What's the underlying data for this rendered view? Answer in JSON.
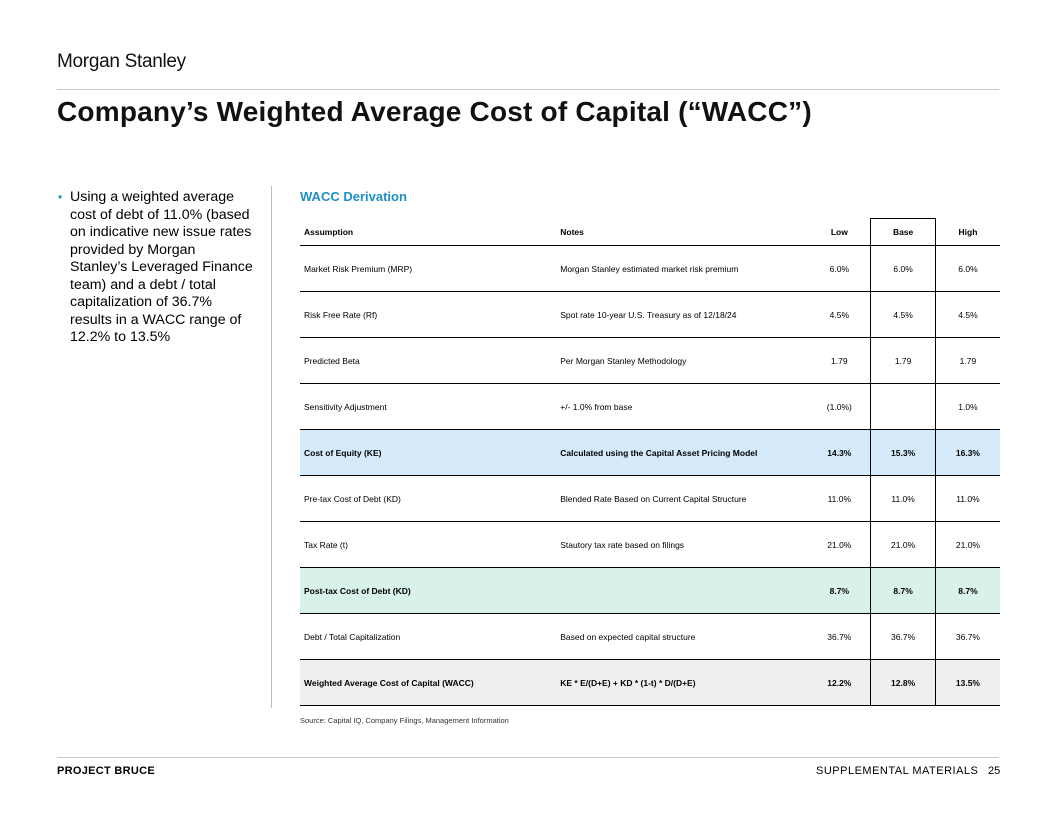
{
  "header": {
    "logo": "Morgan Stanley",
    "title": "Company’s Weighted Average Cost of Capital (“WACC”)"
  },
  "bullet": {
    "text": "Using a weighted average cost of debt of 11.0% (based on indicative new issue rates provided by Morgan Stanley’s Leveraged Finance team) and a debt / total capitalization of 36.7% results in a WACC range of 12.2% to 13.5%"
  },
  "table": {
    "section_title": "WACC Derivation",
    "headers": [
      "Assumption",
      "Notes",
      "Low",
      "Base",
      "High"
    ],
    "rows": [
      [
        "Market Risk Premium (MRP)",
        "Morgan Stanley estimated market risk premium",
        "6.0%",
        "6.0%",
        "6.0%"
      ],
      [
        "Risk Free Rate (Rf)",
        "Spot rate 10-year U.S. Treasury as of 12/18/24",
        "4.5%",
        "4.5%",
        "4.5%"
      ],
      [
        "Predicted Beta",
        "Per Morgan Stanley Methodology",
        "1.79",
        "1.79",
        "1.79"
      ],
      [
        "Sensitivity Adjustment",
        "+/- 1.0% from base",
        "(1.0%)",
        "",
        "1.0%"
      ],
      [
        "Cost of Equity (KE)",
        "Calculated using the Capital Asset Pricing Model",
        "14.3%",
        "15.3%",
        "16.3%"
      ],
      [
        "Pre-tax Cost of Debt (KD)",
        "Blended Rate Based on Current Capital Structure",
        "11.0%",
        "11.0%",
        "11.0%"
      ],
      [
        "Tax Rate (t)",
        "Stautory tax rate based on filings",
        "21.0%",
        "21.0%",
        "21.0%"
      ],
      [
        "Post-tax Cost of Debt (KD)",
        "",
        "8.7%",
        "8.7%",
        "8.7%"
      ],
      [
        "Debt / Total Capitalization",
        "Based on expected capital structure",
        "36.7%",
        "36.7%",
        "36.7%"
      ],
      [
        "Weighted Average Cost of Capital (WACC)",
        "KE * E/(D+E) + KD * (1-t) * D/(D+E)",
        "12.2%",
        "12.8%",
        "13.5%"
      ]
    ],
    "source": "Source: Capital IQ, Company Filings, Management Information"
  },
  "colors": {
    "accent_blue": "#1e8fc6",
    "row_cost_of_equity": "#d5ebfb",
    "row_post_tax_debt": "#d8f1ea",
    "row_wacc": "#efefef"
  },
  "footer": {
    "project": "PROJECT BRUCE",
    "section": "SUPPLEMENTAL MATERIALS",
    "page": "25"
  }
}
